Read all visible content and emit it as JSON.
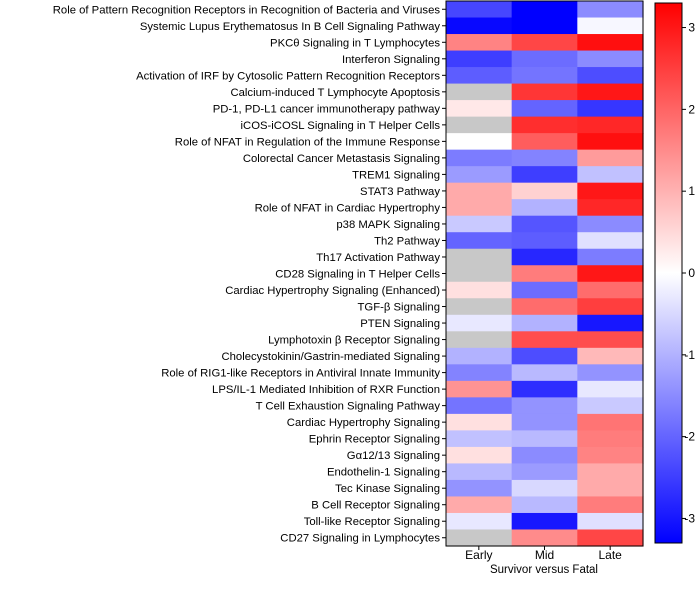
{
  "chart_data": {
    "type": "heatmap",
    "xlabel": "Survivor versus Fatal",
    "ylabel": "",
    "columns": [
      "Early",
      "Mid",
      "Late"
    ],
    "rows": [
      {
        "label": "Role of Pattern Recognition Receptors in Recognition of Bacteria and Viruses",
        "values": [
          -2.4,
          -3.3,
          -1.5
        ]
      },
      {
        "label": "Systemic Lupus Erythematosus In B Cell Signaling Pathway",
        "values": [
          -3.2,
          -3.3,
          -0.1
        ]
      },
      {
        "label": "PKCθ Signaling in T Lymphocytes",
        "values": [
          1.6,
          2.4,
          3.1
        ]
      },
      {
        "label": "Interferon Signaling",
        "values": [
          -2.5,
          -1.9,
          -1.5
        ]
      },
      {
        "label": "Activation of IRF by Cytosolic Pattern Recognition Receptors",
        "values": [
          -2.1,
          -1.8,
          -2.3
        ]
      },
      {
        "label": "Calcium-induced T Lymphocyte Apoptosis",
        "values": [
          null,
          2.6,
          3.0
        ]
      },
      {
        "label": "PD-1, PD-L1 cancer immunotherapy pathway",
        "values": [
          0.3,
          -2.0,
          -2.6
        ]
      },
      {
        "label": "iCOS-iCOSL Signaling in T Helper Cells",
        "values": [
          null,
          2.7,
          2.8
        ]
      },
      {
        "label": "Role of NFAT in Regulation of the Immune Response",
        "values": [
          0.0,
          2.1,
          3.1
        ]
      },
      {
        "label": "Colorectal Cancer Metastasis Signaling",
        "values": [
          -1.7,
          -1.6,
          1.3
        ]
      },
      {
        "label": "TREM1 Signaling",
        "values": [
          -1.3,
          -2.5,
          -0.8
        ]
      },
      {
        "label": "STAT3 Pathway",
        "values": [
          1.1,
          0.6,
          3.0
        ]
      },
      {
        "label": "Role of NFAT in Cardiac Hypertrophy",
        "values": [
          1.1,
          -1.0,
          2.8
        ]
      },
      {
        "label": "p38 MAPK Signaling",
        "values": [
          -0.7,
          -2.2,
          -1.5
        ]
      },
      {
        "label": "Th2 Pathway",
        "values": [
          -2.0,
          -2.1,
          -0.4
        ]
      },
      {
        "label": "Th17 Activation Pathway",
        "values": [
          null,
          -2.8,
          -1.7
        ]
      },
      {
        "label": "CD28 Signaling in T Helper Cells",
        "values": [
          null,
          1.7,
          3.0
        ]
      },
      {
        "label": "Cardiac Hypertrophy Signaling (Enhanced)",
        "values": [
          0.4,
          -1.9,
          1.9
        ]
      },
      {
        "label": "TGF-β Signaling",
        "values": [
          null,
          1.9,
          2.5
        ]
      },
      {
        "label": "PTEN Signaling",
        "values": [
          -0.3,
          -1.0,
          -3.0
        ]
      },
      {
        "label": "Lymphotoxin β Receptor Signaling",
        "values": [
          null,
          2.3,
          2.3
        ]
      },
      {
        "label": "Cholecystokinin/Gastrin-mediated Signaling",
        "values": [
          -1.0,
          -2.3,
          0.9
        ]
      },
      {
        "label": "Role of RIG1-like Receptors in Antiviral Innate Immunity",
        "values": [
          -1.6,
          -0.9,
          -1.4
        ]
      },
      {
        "label": "LPS/IL-1 Mediated Inhibition of RXR Function",
        "values": [
          1.4,
          -2.7,
          -0.3
        ]
      },
      {
        "label": "T Cell Exhaustion Signaling Pathway",
        "values": [
          -1.8,
          -1.4,
          -0.7
        ]
      },
      {
        "label": "Cardiac Hypertrophy Signaling",
        "values": [
          0.4,
          -1.4,
          1.8
        ]
      },
      {
        "label": "Ephrin Receptor Signaling",
        "values": [
          -0.8,
          -0.9,
          1.7
        ]
      },
      {
        "label": "Gα12/13 Signaling",
        "values": [
          0.4,
          -1.5,
          1.6
        ]
      },
      {
        "label": "Endothelin-1 Signaling",
        "values": [
          -0.9,
          -1.3,
          1.1
        ]
      },
      {
        "label": "Tec Kinase Signaling",
        "values": [
          -1.4,
          -0.5,
          1.1
        ]
      },
      {
        "label": "B Cell Receptor Signaling",
        "values": [
          1.1,
          -0.9,
          1.7
        ]
      },
      {
        "label": "Toll-like Receptor Signaling",
        "values": [
          -0.3,
          -3.0,
          -0.4
        ]
      },
      {
        "label": "CD27 Signaling in Lymphocytes",
        "values": [
          null,
          1.5,
          2.4
        ]
      }
    ],
    "colorbar": {
      "min": -3.3,
      "max": 3.3,
      "ticks": [
        3,
        2,
        1,
        0,
        -1,
        -2,
        -3
      ],
      "tick_labels": [
        "3",
        "2",
        "1",
        "0",
        "-1",
        "-2",
        "-3"
      ],
      "colors": {
        "low": "#0000ff",
        "mid": "#ffffff",
        "high": "#ff0000",
        "missing": "#c8c8c8"
      }
    }
  }
}
